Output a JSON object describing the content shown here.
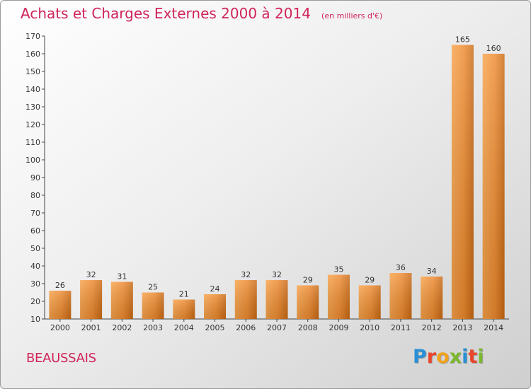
{
  "chart_data": {
    "type": "bar",
    "title": "Achats et Charges Externes 2000 à 2014",
    "unit": "(en milliers d'€)",
    "categories": [
      "2000",
      "2001",
      "2002",
      "2003",
      "2004",
      "2005",
      "2006",
      "2007",
      "2008",
      "2009",
      "2010",
      "2011",
      "2012",
      "2013",
      "2014"
    ],
    "values": [
      26,
      32,
      31,
      25,
      21,
      24,
      32,
      32,
      29,
      35,
      29,
      36,
      34,
      165,
      160
    ],
    "ylim": [
      10,
      170
    ],
    "yticks": [
      10,
      20,
      30,
      40,
      50,
      60,
      70,
      80,
      90,
      100,
      110,
      120,
      130,
      140,
      150,
      160,
      170
    ],
    "grid": false,
    "bar_color_light": "#f7a24a",
    "bar_color_dark": "#c96a14"
  },
  "footer": {
    "place": "BEAUSSAIS",
    "brand": "Proxiti",
    "brand_colors": [
      "#2a8fd4",
      "#e8452c",
      "#f0a21c",
      "#7bb82d",
      "#2a8fd4",
      "#e8452c",
      "#7bb82d"
    ]
  }
}
